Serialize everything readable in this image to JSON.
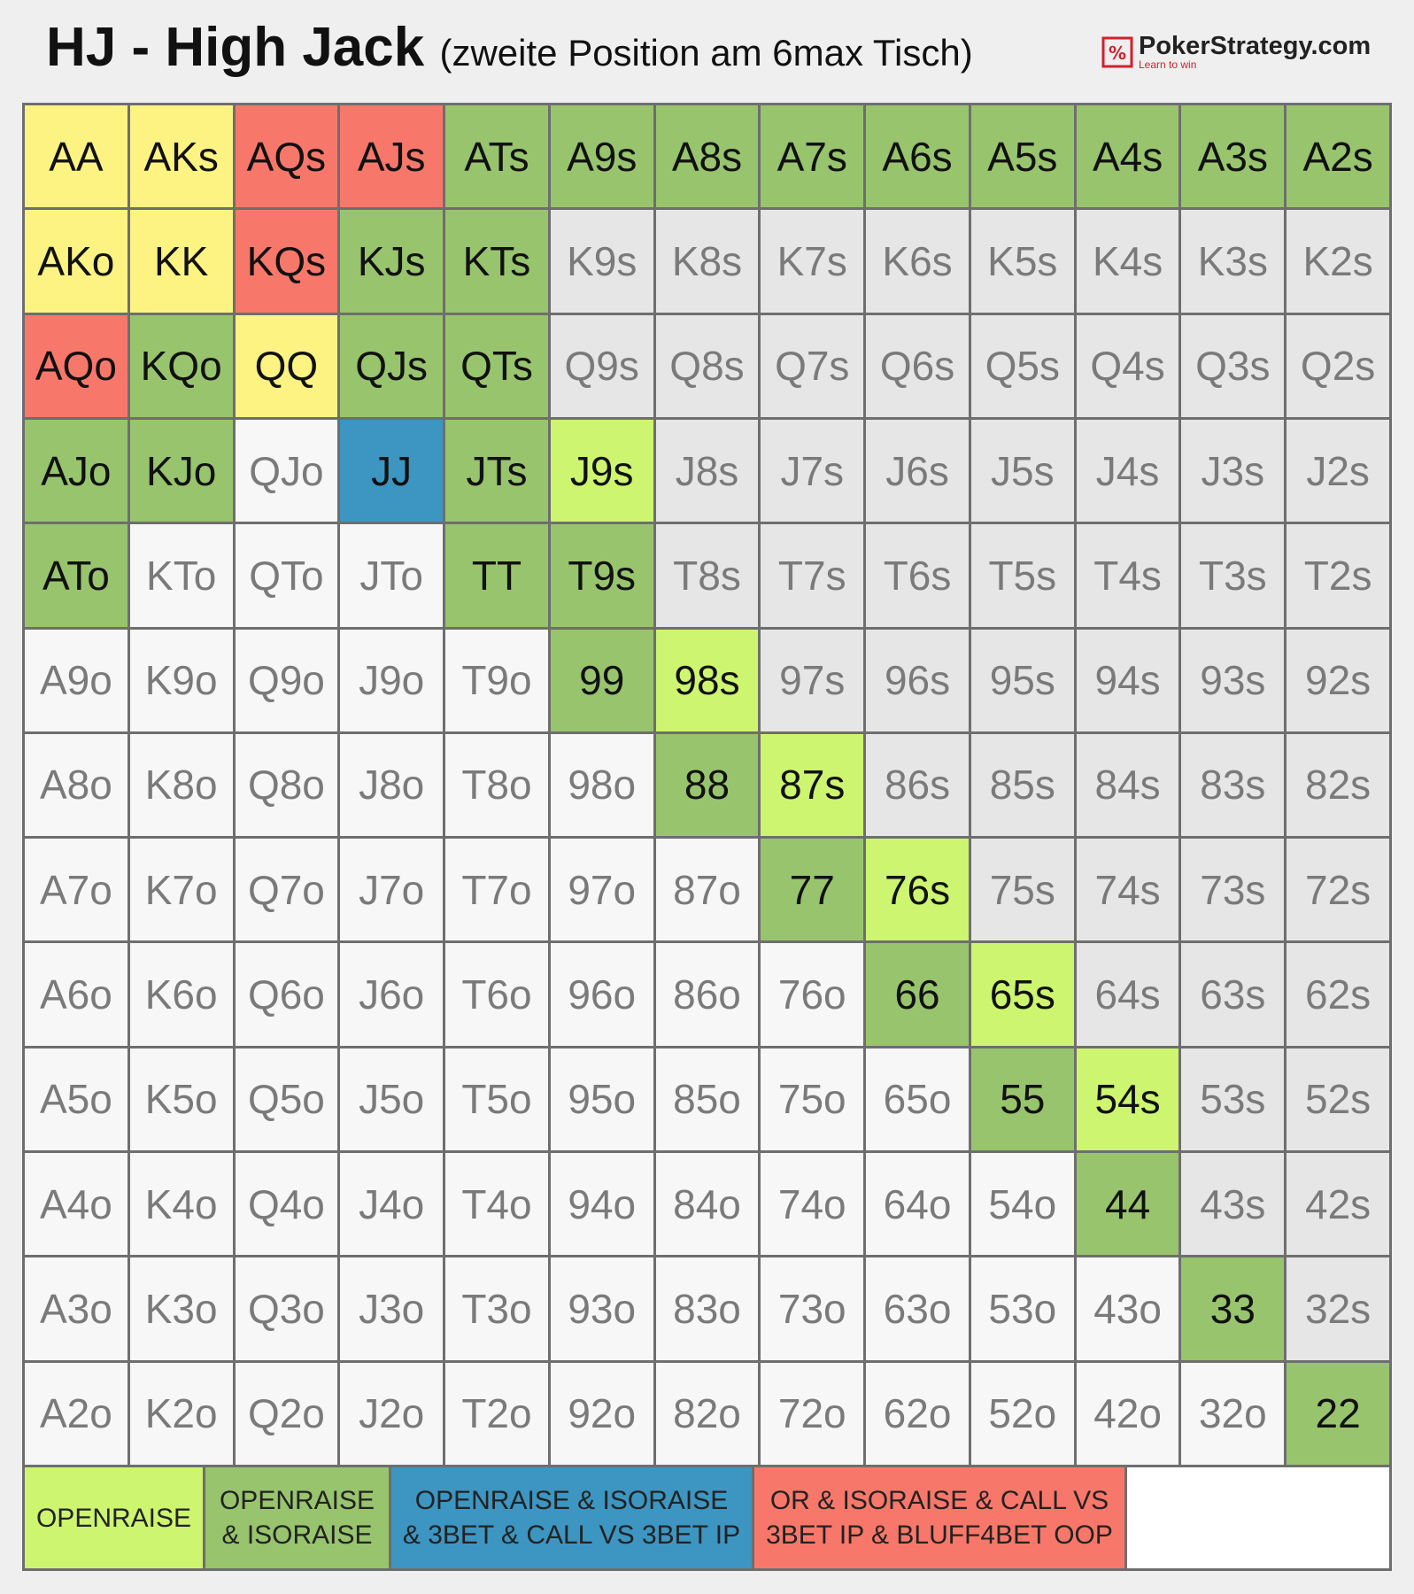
{
  "header": {
    "title": "HJ - High Jack",
    "subtitle": "(zweite Position am 6max Tisch)",
    "logo": "PokerStrategy.com",
    "tagline": "Learn to win"
  },
  "table": {
    "rows": [
      {
        "labels": [
          "AA",
          "AKs",
          "AQs",
          "AJs",
          "ATs",
          "A9s",
          "A8s",
          "A7s",
          "A6s",
          "A5s",
          "A4s",
          "A3s",
          "A2s"
        ],
        "fills": [
          "#fcf383",
          "#fcf383",
          "#f7786a",
          "#f7786a",
          "#98c46d",
          "#98c46d",
          "#98c46d",
          "#98c46d",
          "#98c46d",
          "#98c46d",
          "#98c46d",
          "#98c46d",
          "#98c46d"
        ]
      },
      {
        "labels": [
          "AKo",
          "KK",
          "KQs",
          "KJs",
          "KTs",
          "K9s",
          "K8s",
          "K7s",
          "K6s",
          "K5s",
          "K4s",
          "K3s",
          "K2s"
        ],
        "fills": [
          "#fcf383",
          "#fcf383",
          "#f7786a",
          "#98c46d",
          "#98c46d",
          "#e6e6e6",
          "#e6e6e6",
          "#e6e6e6",
          "#e6e6e6",
          "#e6e6e6",
          "#e6e6e6",
          "#e6e6e6",
          "#e6e6e6"
        ]
      },
      {
        "labels": [
          "AQo",
          "KQo",
          "QQ",
          "QJs",
          "QTs",
          "Q9s",
          "Q8s",
          "Q7s",
          "Q6s",
          "Q5s",
          "Q4s",
          "Q3s",
          "Q2s"
        ],
        "fills": [
          "#f7786a",
          "#98c46d",
          "#fcf383",
          "#98c46d",
          "#98c46d",
          "#e6e6e6",
          "#e6e6e6",
          "#e6e6e6",
          "#e6e6e6",
          "#e6e6e6",
          "#e6e6e6",
          "#e6e6e6",
          "#e6e6e6"
        ]
      },
      {
        "labels": [
          "AJo",
          "KJo",
          "QJo",
          "JJ",
          "JTs",
          "J9s",
          "J8s",
          "J7s",
          "J6s",
          "J5s",
          "J4s",
          "J3s",
          "J2s"
        ],
        "fills": [
          "#98c46d",
          "#98c46d",
          "#f7f7f7",
          "#3d95c1",
          "#98c46d",
          "#cdf56f",
          "#e6e6e6",
          "#e6e6e6",
          "#e6e6e6",
          "#e6e6e6",
          "#e6e6e6",
          "#e6e6e6",
          "#e6e6e6"
        ]
      },
      {
        "labels": [
          "ATo",
          "KTo",
          "QTo",
          "JTo",
          "TT",
          "T9s",
          "T8s",
          "T7s",
          "T6s",
          "T5s",
          "T4s",
          "T3s",
          "T2s"
        ],
        "fills": [
          "#98c46d",
          "#f7f7f7",
          "#f7f7f7",
          "#f7f7f7",
          "#98c46d",
          "#98c46d",
          "#e6e6e6",
          "#e6e6e6",
          "#e6e6e6",
          "#e6e6e6",
          "#e6e6e6",
          "#e6e6e6",
          "#e6e6e6"
        ]
      },
      {
        "labels": [
          "A9o",
          "K9o",
          "Q9o",
          "J9o",
          "T9o",
          "99",
          "98s",
          "97s",
          "96s",
          "95s",
          "94s",
          "93s",
          "92s"
        ],
        "fills": [
          "#f7f7f7",
          "#f7f7f7",
          "#f7f7f7",
          "#f7f7f7",
          "#f7f7f7",
          "#98c46d",
          "#cdf56f",
          "#e6e6e6",
          "#e6e6e6",
          "#e6e6e6",
          "#e6e6e6",
          "#e6e6e6",
          "#e6e6e6"
        ]
      },
      {
        "labels": [
          "A8o",
          "K8o",
          "Q8o",
          "J8o",
          "T8o",
          "98o",
          "88",
          "87s",
          "86s",
          "85s",
          "84s",
          "83s",
          "82s"
        ],
        "fills": [
          "#f7f7f7",
          "#f7f7f7",
          "#f7f7f7",
          "#f7f7f7",
          "#f7f7f7",
          "#f7f7f7",
          "#98c46d",
          "#cdf56f",
          "#e6e6e6",
          "#e6e6e6",
          "#e6e6e6",
          "#e6e6e6",
          "#e6e6e6"
        ]
      },
      {
        "labels": [
          "A7o",
          "K7o",
          "Q7o",
          "J7o",
          "T7o",
          "97o",
          "87o",
          "77",
          "76s",
          "75s",
          "74s",
          "73s",
          "72s"
        ],
        "fills": [
          "#f7f7f7",
          "#f7f7f7",
          "#f7f7f7",
          "#f7f7f7",
          "#f7f7f7",
          "#f7f7f7",
          "#f7f7f7",
          "#98c46d",
          "#cdf56f",
          "#e6e6e6",
          "#e6e6e6",
          "#e6e6e6",
          "#e6e6e6"
        ]
      },
      {
        "labels": [
          "A6o",
          "K6o",
          "Q6o",
          "J6o",
          "T6o",
          "96o",
          "86o",
          "76o",
          "66",
          "65s",
          "64s",
          "63s",
          "62s"
        ],
        "fills": [
          "#f7f7f7",
          "#f7f7f7",
          "#f7f7f7",
          "#f7f7f7",
          "#f7f7f7",
          "#f7f7f7",
          "#f7f7f7",
          "#f7f7f7",
          "#98c46d",
          "#cdf56f",
          "#e6e6e6",
          "#e6e6e6",
          "#e6e6e6"
        ]
      },
      {
        "labels": [
          "A5o",
          "K5o",
          "Q5o",
          "J5o",
          "T5o",
          "95o",
          "85o",
          "75o",
          "65o",
          "55",
          "54s",
          "53s",
          "52s"
        ],
        "fills": [
          "#f7f7f7",
          "#f7f7f7",
          "#f7f7f7",
          "#f7f7f7",
          "#f7f7f7",
          "#f7f7f7",
          "#f7f7f7",
          "#f7f7f7",
          "#f7f7f7",
          "#98c46d",
          "#cdf56f",
          "#e6e6e6",
          "#e6e6e6"
        ]
      },
      {
        "labels": [
          "A4o",
          "K4o",
          "Q4o",
          "J4o",
          "T4o",
          "94o",
          "84o",
          "74o",
          "64o",
          "54o",
          "44",
          "43s",
          "42s"
        ],
        "fills": [
          "#f7f7f7",
          "#f7f7f7",
          "#f7f7f7",
          "#f7f7f7",
          "#f7f7f7",
          "#f7f7f7",
          "#f7f7f7",
          "#f7f7f7",
          "#f7f7f7",
          "#f7f7f7",
          "#98c46d",
          "#e6e6e6",
          "#e6e6e6"
        ]
      },
      {
        "labels": [
          "A3o",
          "K3o",
          "Q3o",
          "J3o",
          "T3o",
          "93o",
          "83o",
          "73o",
          "63o",
          "53o",
          "43o",
          "33",
          "32s"
        ],
        "fills": [
          "#f7f7f7",
          "#f7f7f7",
          "#f7f7f7",
          "#f7f7f7",
          "#f7f7f7",
          "#f7f7f7",
          "#f7f7f7",
          "#f7f7f7",
          "#f7f7f7",
          "#f7f7f7",
          "#f7f7f7",
          "#98c46d",
          "#e6e6e6"
        ]
      },
      {
        "labels": [
          "A2o",
          "K2o",
          "Q2o",
          "J2o",
          "T2o",
          "92o",
          "82o",
          "72o",
          "62o",
          "52o",
          "42o",
          "32o",
          "22"
        ],
        "fills": [
          "#f7f7f7",
          "#f7f7f7",
          "#f7f7f7",
          "#f7f7f7",
          "#f7f7f7",
          "#f7f7f7",
          "#f7f7f7",
          "#f7f7f7",
          "#f7f7f7",
          "#f7f7f7",
          "#f7f7f7",
          "#f7f7f7",
          "#98c46d"
        ]
      }
    ]
  },
  "legend": [
    {
      "lines": [
        "OPENRAISE"
      ],
      "fill": "#cdf56f"
    },
    {
      "lines": [
        "OPENRAISE",
        "& ISORAISE"
      ],
      "fill": "#98c46d"
    },
    {
      "lines": [
        "OPENRAISE & ISORAISE",
        "& 3BET & CALL VS 3BET IP"
      ],
      "fill": "#3d95c1"
    },
    {
      "lines": [
        "OR & ISORAISE & CALL VS",
        "3BET IP & BLUFF4BET OOP"
      ],
      "fill": "#f7786a"
    }
  ]
}
